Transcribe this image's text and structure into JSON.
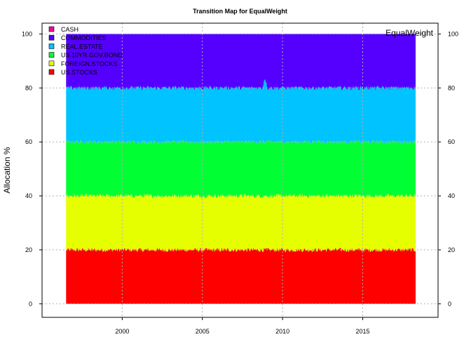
{
  "chart_data": {
    "type": "area",
    "title": "Transition Map for EqualWeight",
    "ylabel": "Allocation %",
    "xlabel": "",
    "annotation": "EqualWeight",
    "x_range": [
      1996.5,
      2018.3
    ],
    "x_axis_limits": [
      1995.0,
      2019.7
    ],
    "xticks": [
      "2000",
      "2005",
      "2010",
      "2015"
    ],
    "ylim": [
      -5,
      104
    ],
    "yticks": [
      "0",
      "20",
      "40",
      "60",
      "80",
      "100"
    ],
    "grid": true,
    "stacked": true,
    "legend_position": "top-left",
    "series": [
      {
        "name": "US.STOCKS",
        "color": "#ff0000",
        "mean": 20,
        "noise": 0.8
      },
      {
        "name": "FOREIGN.STOCKS",
        "color": "#e6ff00",
        "mean": 20,
        "noise": 0.8
      },
      {
        "name": "US.10YR.GOV.BOND",
        "color": "#00ff33",
        "mean": 20,
        "noise": 0.8
      },
      {
        "name": "REAL.ESTATE",
        "color": "#00c3ff",
        "mean": 20,
        "noise": 0.8
      },
      {
        "name": "COMMODITIES",
        "color": "#5500ff",
        "mean": 20,
        "noise": 0.8
      },
      {
        "name": "CASH",
        "color": "#ff0099",
        "mean": 0,
        "noise": 0
      }
    ],
    "legend_order": [
      "CASH",
      "COMMODITIES",
      "REAL.ESTATE",
      "US.10YR.GOV.BOND",
      "FOREIGN.STOCKS",
      "US.STOCKS"
    ]
  }
}
